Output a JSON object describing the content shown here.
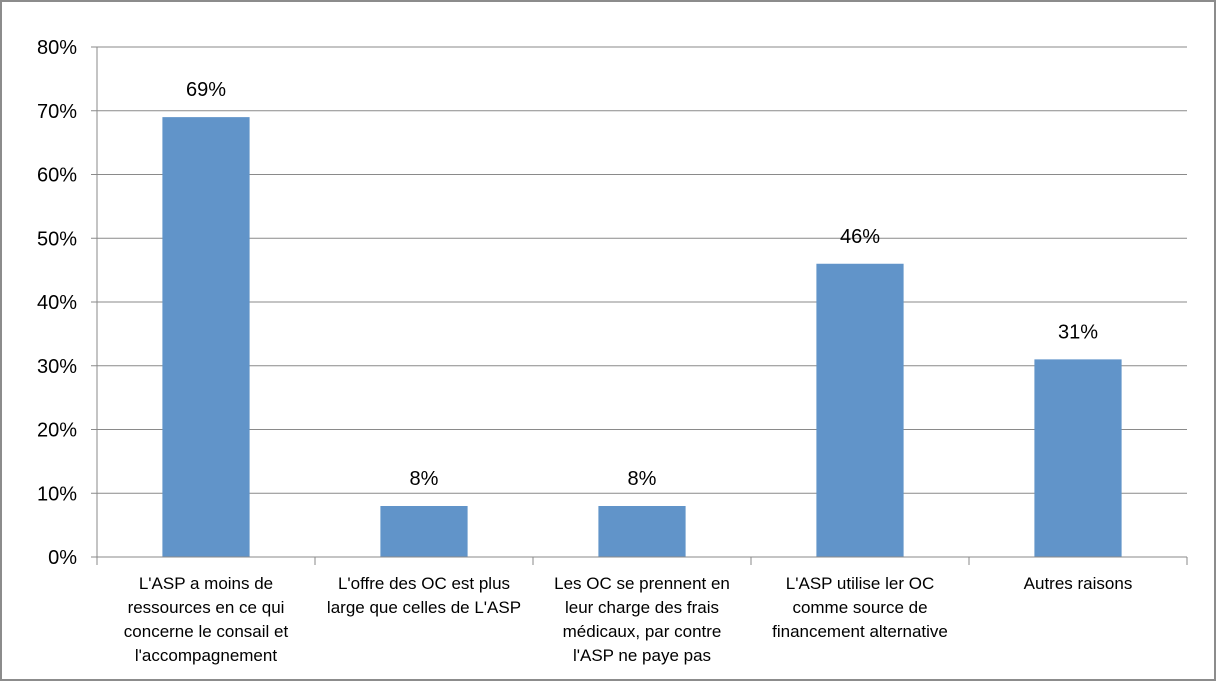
{
  "chart_data": {
    "type": "bar",
    "title": "",
    "xlabel": "",
    "ylabel": "",
    "categories": [
      "L'ASP a moins de ressources en ce qui concerne le consail et l'accompagnement",
      "L'offre des OC est plus large que celles de L'ASP",
      "Les OC se prennent en leur charge des frais médicaux, par contre l'ASP ne paye pas",
      "L'ASP utilise ler OC comme source de financement alternative",
      "Autres raisons"
    ],
    "category_lines": [
      [
        "L'ASP a moins de",
        "ressources en ce qui",
        "concerne le consail et",
        "l'accompagnement"
      ],
      [
        "L'offre des OC est plus",
        "large que celles de L'ASP"
      ],
      [
        "Les OC se prennent en",
        "leur charge des frais",
        "médicaux, par contre",
        "l'ASP ne paye pas"
      ],
      [
        "L'ASP utilise ler OC",
        "comme source de",
        "financement alternative"
      ],
      [
        "Autres raisons"
      ]
    ],
    "values": [
      69,
      8,
      8,
      46,
      31
    ],
    "data_labels": [
      "69%",
      "8%",
      "8%",
      "46%",
      "31%"
    ],
    "y_ticks": [
      0,
      10,
      20,
      30,
      40,
      50,
      60,
      70,
      80
    ],
    "y_tick_labels": [
      "0%",
      "10%",
      "20%",
      "30%",
      "40%",
      "50%",
      "60%",
      "70%",
      "80%"
    ],
    "ylim": [
      0,
      80
    ],
    "grid": true,
    "legend": "none",
    "colors": {
      "bar": "#6194c9",
      "grid": "#8a8a8a",
      "axis": "#8a8a8a",
      "frame": "#8c8c8c"
    }
  }
}
